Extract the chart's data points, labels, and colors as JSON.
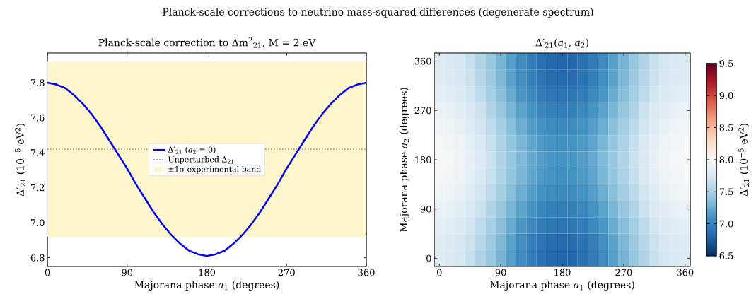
{
  "chart_data": [
    {
      "type": "line",
      "title": "Planck-scale correction to Δm$^{2}$$_{21}$, M = 2 eV",
      "xlabel": "Majorana phase *a*$_{1}$ (degrees)",
      "ylabel": "Δ′$_{21}$ (10$^{−5}$ eV$^{2}$)",
      "annotations": [
        "Planck-scale corrections to neutrino mass-squared differences (degenerate spectrum)"
      ],
      "x": [
        0,
        10,
        20,
        30,
        40,
        50,
        60,
        70,
        80,
        90,
        100,
        110,
        120,
        130,
        140,
        150,
        160,
        170,
        180,
        190,
        200,
        210,
        220,
        230,
        240,
        250,
        260,
        270,
        280,
        290,
        300,
        310,
        320,
        330,
        340,
        350,
        360
      ],
      "series": [
        {
          "name": "Δ′$_{21}$ (*a*$_{2}$ = 0)",
          "color": "#0000ff",
          "values": [
            7.8,
            7.79,
            7.77,
            7.73,
            7.68,
            7.62,
            7.55,
            7.47,
            7.39,
            7.31,
            7.22,
            7.14,
            7.06,
            6.99,
            6.93,
            6.88,
            6.84,
            6.82,
            6.81,
            6.82,
            6.84,
            6.88,
            6.93,
            6.99,
            7.06,
            7.14,
            7.22,
            7.31,
            7.39,
            7.47,
            7.55,
            7.62,
            7.68,
            7.73,
            7.77,
            7.79,
            7.8
          ]
        }
      ],
      "ref_lines": [
        {
          "axis": "y",
          "value": 7.42,
          "label": "Unperturbed Δ$_{21}$",
          "color": "#808080",
          "line_style": "dotted"
        }
      ],
      "bands": [
        {
          "axis": "y",
          "from": 6.92,
          "to": 7.92,
          "label": "±1σ experimental band",
          "color": "#fdf5cc"
        }
      ],
      "xlim": [
        0,
        360
      ],
      "xticks": [
        0,
        90,
        180,
        270,
        360
      ],
      "ylim": [
        6.75,
        7.97
      ],
      "yticks": [
        6.8,
        {
          "value": 7.0,
          "label": "7.0"
        },
        7.2,
        7.4,
        7.6,
        7.8
      ],
      "legend": "center",
      "grid": false
    },
    {
      "type": "heatmap",
      "title": "Δ′$_{21}$(*a*$_{1}$, *a*$_{2}$)",
      "xlabel": "Majorana phase *a*$_{1}$ (degrees)",
      "ylabel": "Majorana phase *a*$_{2}$ (degrees)",
      "clabel": "Δ′$_{21}$ (10$^{−5}$ eV$^{2}$)",
      "categories": [
        "0",
        null,
        null,
        null,
        null,
        null,
        "90",
        null,
        null,
        null,
        null,
        null,
        "180",
        null,
        null,
        null,
        null,
        null,
        "270",
        null,
        null,
        null,
        null,
        null,
        "360"
      ],
      "y_categories": [
        "360",
        null,
        null,
        "270",
        null,
        null,
        "180",
        null,
        null,
        "90",
        null,
        null,
        "0"
      ],
      "cells": [
        [
          7.8,
          7.78,
          7.73,
          7.65,
          7.55,
          7.43,
          7.3,
          7.17,
          7.05,
          6.95,
          6.87,
          6.82,
          6.8,
          6.82,
          6.87,
          6.95,
          7.05,
          7.17,
          7.3,
          7.43,
          7.55,
          7.65,
          7.73,
          7.78,
          7.8
        ],
        [
          7.81,
          7.79,
          7.74,
          7.67,
          7.57,
          7.45,
          7.32,
          7.19,
          7.08,
          6.97,
          6.9,
          6.85,
          6.83,
          6.85,
          6.9,
          6.97,
          7.08,
          7.19,
          7.32,
          7.45,
          7.57,
          7.67,
          7.74,
          7.79,
          7.81
        ],
        [
          7.85,
          7.83,
          7.79,
          7.71,
          7.61,
          7.49,
          7.37,
          7.25,
          7.13,
          7.03,
          6.95,
          6.91,
          6.89,
          6.91,
          6.95,
          7.03,
          7.13,
          7.25,
          7.37,
          7.49,
          7.61,
          7.71,
          7.79,
          7.83,
          7.85
        ],
        [
          7.9,
          7.88,
          7.84,
          7.76,
          7.67,
          7.55,
          7.43,
          7.31,
          7.2,
          7.1,
          7.02,
          6.98,
          6.96,
          6.98,
          7.02,
          7.1,
          7.2,
          7.31,
          7.43,
          7.55,
          7.67,
          7.76,
          7.84,
          7.88,
          7.9
        ],
        [
          7.95,
          7.93,
          7.89,
          7.82,
          7.72,
          7.61,
          7.49,
          7.37,
          7.26,
          7.16,
          7.09,
          7.05,
          7.03,
          7.05,
          7.09,
          7.16,
          7.26,
          7.37,
          7.49,
          7.61,
          7.72,
          7.82,
          7.89,
          7.93,
          7.95
        ],
        [
          7.98,
          7.96,
          7.92,
          7.85,
          7.76,
          7.65,
          7.53,
          7.41,
          7.31,
          7.21,
          7.14,
          7.1,
          7.08,
          7.1,
          7.14,
          7.21,
          7.31,
          7.41,
          7.53,
          7.65,
          7.76,
          7.85,
          7.92,
          7.96,
          7.98
        ],
        [
          8.0,
          7.98,
          7.94,
          7.87,
          7.78,
          7.67,
          7.55,
          7.43,
          7.33,
          7.23,
          7.16,
          7.12,
          7.1,
          7.12,
          7.16,
          7.23,
          7.33,
          7.43,
          7.55,
          7.67,
          7.78,
          7.87,
          7.94,
          7.98,
          8.0
        ],
        [
          7.98,
          7.96,
          7.92,
          7.85,
          7.76,
          7.65,
          7.53,
          7.41,
          7.31,
          7.21,
          7.14,
          7.1,
          7.08,
          7.1,
          7.14,
          7.21,
          7.31,
          7.41,
          7.53,
          7.65,
          7.76,
          7.85,
          7.92,
          7.96,
          7.98
        ],
        [
          7.95,
          7.93,
          7.89,
          7.82,
          7.72,
          7.61,
          7.49,
          7.37,
          7.26,
          7.16,
          7.09,
          7.05,
          7.03,
          7.05,
          7.09,
          7.16,
          7.26,
          7.37,
          7.49,
          7.61,
          7.72,
          7.82,
          7.89,
          7.93,
          7.95
        ],
        [
          7.9,
          7.88,
          7.84,
          7.76,
          7.67,
          7.55,
          7.43,
          7.31,
          7.2,
          7.1,
          7.02,
          6.98,
          6.96,
          6.98,
          7.02,
          7.1,
          7.2,
          7.31,
          7.43,
          7.55,
          7.67,
          7.76,
          7.84,
          7.88,
          7.9
        ],
        [
          7.85,
          7.83,
          7.79,
          7.71,
          7.61,
          7.49,
          7.37,
          7.25,
          7.13,
          7.03,
          6.95,
          6.91,
          6.89,
          6.91,
          6.95,
          7.03,
          7.13,
          7.25,
          7.37,
          7.49,
          7.61,
          7.71,
          7.79,
          7.83,
          7.85
        ],
        [
          7.81,
          7.79,
          7.74,
          7.67,
          7.57,
          7.45,
          7.32,
          7.19,
          7.08,
          6.97,
          6.9,
          6.85,
          6.83,
          6.85,
          6.9,
          6.97,
          7.08,
          7.19,
          7.32,
          7.45,
          7.57,
          7.67,
          7.74,
          7.79,
          7.81
        ],
        [
          7.8,
          7.78,
          7.73,
          7.65,
          7.55,
          7.43,
          7.3,
          7.17,
          7.05,
          6.95,
          6.87,
          6.82,
          6.8,
          6.82,
          6.87,
          6.95,
          7.05,
          7.17,
          7.3,
          7.43,
          7.55,
          7.65,
          7.73,
          7.78,
          7.8
        ]
      ],
      "clim": [
        6.5,
        9.5
      ],
      "cticks": [
        6.5,
        {
          "value": 7.0,
          "label": "7.0"
        },
        7.5,
        {
          "value": 8.0,
          "label": "8.0"
        },
        8.5,
        {
          "value": 9.0,
          "label": "9.0"
        },
        9.5
      ]
    }
  ]
}
